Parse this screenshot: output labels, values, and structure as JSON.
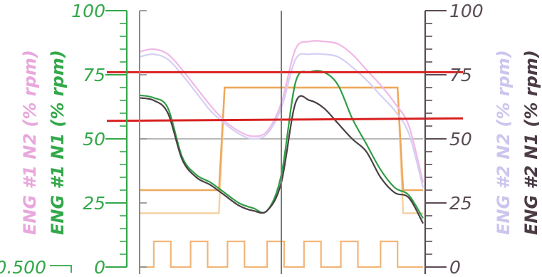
{
  "chart_data": {
    "type": "line",
    "grid": true,
    "y_left": {
      "ylim": [
        0,
        100
      ],
      "ticks": [
        0,
        25,
        50,
        75,
        100
      ],
      "tick_labels": [
        "0",
        "25",
        "50",
        "75",
        "100"
      ],
      "bottom_label": "0.500",
      "labels": [
        {
          "text": "ENG #1 N2 (% rpm)",
          "color": "#e8a7dd"
        },
        {
          "text": "ENG #1 N1 (% rpm)",
          "color": "#33a84a"
        }
      ]
    },
    "y_right": {
      "ylim": [
        0,
        100
      ],
      "ticks": [
        0,
        25,
        50,
        75,
        100
      ],
      "tick_labels": [
        "0",
        "25",
        "50",
        "75",
        "100"
      ],
      "labels": [
        {
          "text": "ENG #2 N2 (% rpm)",
          "color": "#cbc6ee"
        },
        {
          "text": "ENG #2 N1 (% rpm)",
          "color": "#4a3b45"
        }
      ]
    },
    "x": [
      0,
      5,
      10,
      15,
      20,
      25,
      30,
      35,
      40,
      45,
      50,
      55,
      60,
      65,
      70,
      75,
      80,
      85,
      90,
      95,
      100
    ],
    "series": [
      {
        "id": "eng1_n2",
        "color": "#f0b8e6",
        "values": [
          84,
          85,
          83,
          77,
          70,
          63,
          57,
          53,
          51,
          53,
          64,
          85,
          88,
          88,
          87,
          83,
          77,
          71,
          64,
          55,
          33
        ]
      },
      {
        "id": "eng2_n2",
        "color": "#d4cff4",
        "values": [
          82,
          83,
          81,
          75,
          68,
          61,
          56,
          52,
          50,
          52,
          62,
          81,
          83,
          83,
          82,
          78,
          73,
          67,
          61,
          52,
          31
        ]
      },
      {
        "id": "eng1_n1",
        "color": "#2f9e44",
        "values": [
          67,
          66,
          62,
          43,
          36,
          33,
          29,
          25,
          23,
          22,
          36,
          72,
          76,
          76,
          71,
          58,
          48,
          38,
          31,
          28,
          19
        ]
      },
      {
        "id": "eng2_n1",
        "color": "#4a4045",
        "values": [
          66,
          65,
          60,
          42,
          35,
          32,
          28,
          24,
          22,
          22,
          33,
          64,
          65,
          62,
          56,
          50,
          45,
          35,
          29,
          27,
          17
        ]
      }
    ],
    "steps": [
      {
        "id": "step_upper",
        "color": "#eda85b",
        "points": [
          [
            0,
            30
          ],
          [
            28,
            30
          ],
          [
            30,
            70
          ],
          [
            91,
            70
          ],
          [
            93,
            30
          ],
          [
            100,
            30
          ]
        ]
      },
      {
        "id": "step_lower",
        "color": "#f6cf9f",
        "points": [
          [
            0,
            21
          ],
          [
            28,
            21
          ],
          [
            30,
            70
          ],
          [
            91,
            70
          ],
          [
            93,
            21
          ],
          [
            100,
            21
          ]
        ]
      }
    ],
    "pulses": {
      "color": "#f2b578",
      "low": 0,
      "high": 10,
      "intervals": [
        [
          5,
          11
        ],
        [
          18,
          24
        ],
        [
          31,
          37
        ],
        [
          45,
          51
        ],
        [
          58,
          64
        ],
        [
          71,
          77
        ],
        [
          85,
          91
        ]
      ]
    },
    "reference_lines": [
      {
        "color": "#d92020",
        "y_start": 76,
        "y_end": 76
      },
      {
        "color": "#d92020",
        "y_start": 57,
        "y_end": 58
      }
    ],
    "cursor_x": 50
  }
}
